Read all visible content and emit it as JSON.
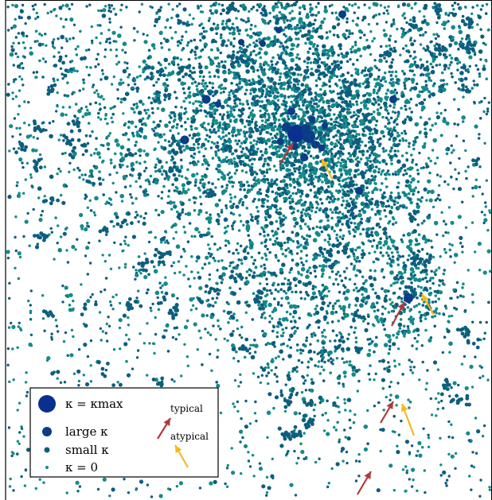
{
  "chart_data": {
    "type": "scatter",
    "title": "",
    "xlabel": "",
    "ylabel": "",
    "grid": false,
    "legend_placement": "bottom-left",
    "series": [
      {
        "name": "κ = κ_max",
        "legend_label": "κ = κmax",
        "color": "#0a2f8f"
      },
      {
        "name": "large κ",
        "legend_label": "large κ",
        "color": "#0b3c86"
      },
      {
        "name": "small κ",
        "legend_label": "small κ",
        "color": "#0d5e7e"
      },
      {
        "name": "κ = 0",
        "legend_label": "κ = 0",
        "color": "#148a8a"
      }
    ],
    "annotations": [
      {
        "name": "typical",
        "label": "typical",
        "color": "#b03a3a"
      },
      {
        "name": "atypical",
        "label": "atypical",
        "color": "#f2b91f"
      }
    ]
  },
  "colors": {
    "kappa_max": "#0a2f8f",
    "large": "#0b3c86",
    "small": "#0d5e7e",
    "zero": "#148a8a",
    "typical_arrow": "#b03a3a",
    "atypical_arrow": "#f2b91f",
    "frame": "#000000"
  }
}
